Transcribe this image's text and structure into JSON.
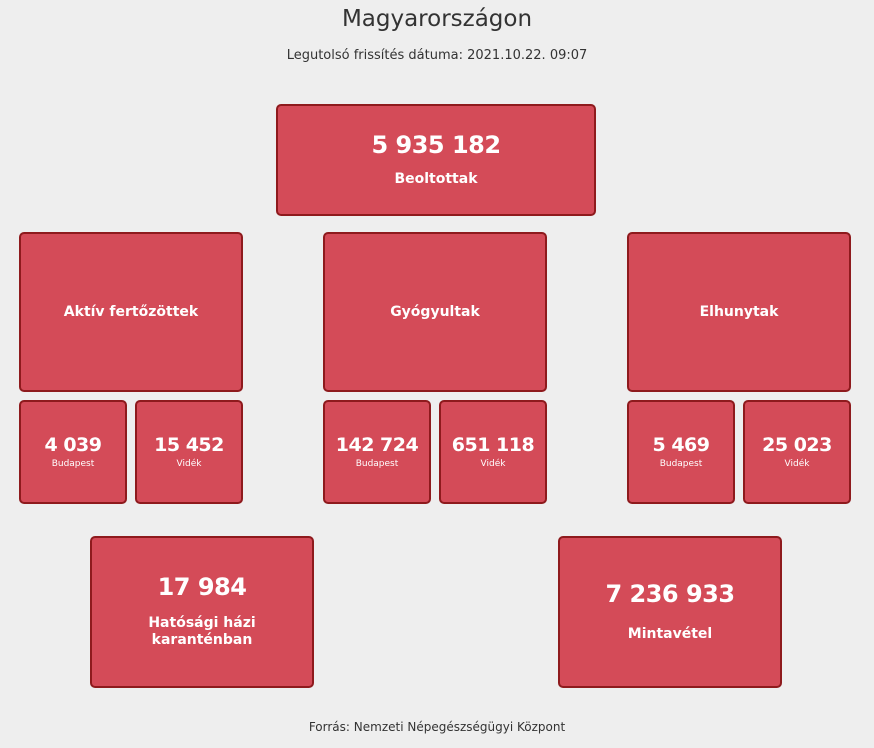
{
  "header": {
    "title": "Magyarországon",
    "updated": "Legutolsó frissítés dátuma: 2021.10.22. 09:07"
  },
  "vaccinated": {
    "value": "5 935 182",
    "label": "Beoltottak"
  },
  "categories": [
    {
      "label": "Aktív fertőzöttek",
      "budapest": {
        "value": "4 039",
        "label": "Budapest"
      },
      "videk": {
        "value": "15 452",
        "label": "Vidék"
      }
    },
    {
      "label": "Gyógyultak",
      "budapest": {
        "value": "142 724",
        "label": "Budapest"
      },
      "videk": {
        "value": "651 118",
        "label": "Vidék"
      }
    },
    {
      "label": "Elhunytak",
      "budapest": {
        "value": "5 469",
        "label": "Budapest"
      },
      "videk": {
        "value": "25 023",
        "label": "Vidék"
      }
    }
  ],
  "quarantine": {
    "value": "17 984",
    "label_line1": "Hatósági házi",
    "label_line2": "karanténban"
  },
  "sampling": {
    "value": "7 236 933",
    "label": "Mintavétel"
  },
  "footer": {
    "source": "Forrás: Nemzeti Népegészségügyi Központ"
  },
  "colors": {
    "card_bg": "#d44b58",
    "card_border": "#8e1a1d",
    "page_bg": "#eeeeee",
    "text": "#333333"
  }
}
